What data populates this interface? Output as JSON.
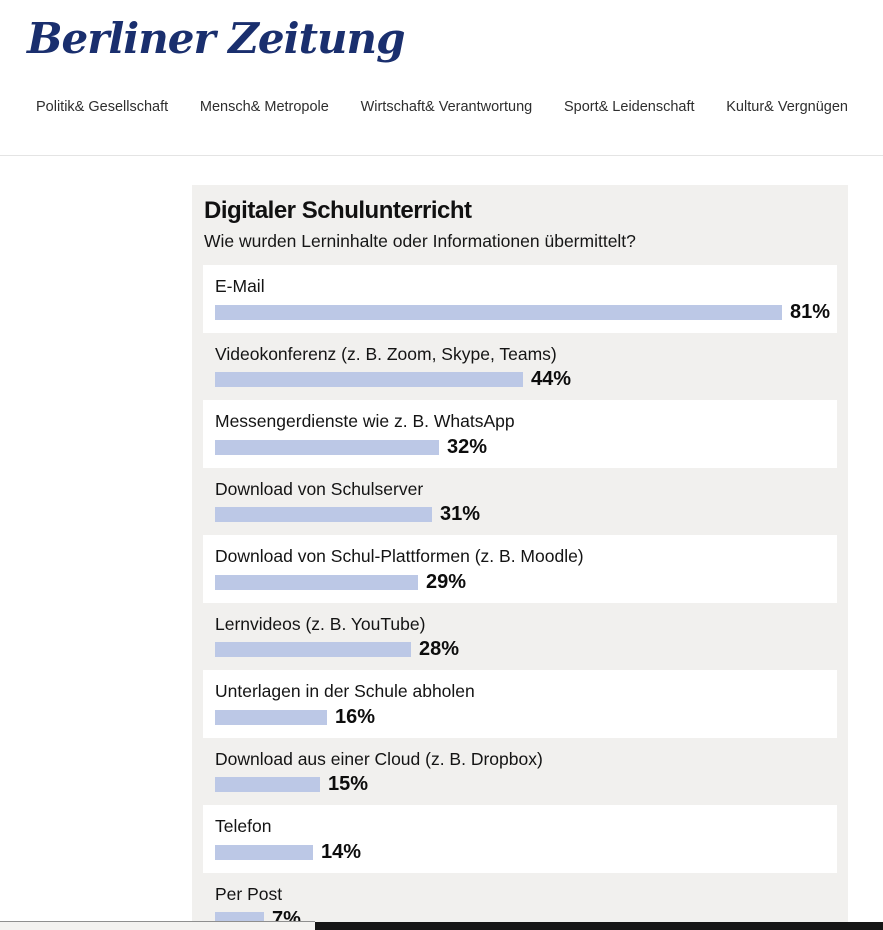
{
  "brand": {
    "logo_text": "Berliner Zeitung"
  },
  "nav": {
    "items": [
      {
        "label": "Politik& Gesellschaft"
      },
      {
        "label": "Mensch& Metropole"
      },
      {
        "label": "Wirtschaft& Verantwortung"
      },
      {
        "label": "Sport& Leidenschaft"
      },
      {
        "label": "Kultur& Vergnügen"
      }
    ]
  },
  "chart_data": {
    "type": "bar",
    "orientation": "horizontal",
    "title": "Digitaler Schulunterricht",
    "subtitle": "Wie wurden Lerninhalte oder Informationen übermittelt?",
    "unit": "%",
    "xlim": [
      0,
      100
    ],
    "categories": [
      "E-Mail",
      "Videokonferenz (z. B. Zoom, Skype, Teams)",
      "Messengerdienste wie z. B. WhatsApp",
      "Download von Schulserver",
      "Download von Schul-Plattformen (z. B. Moodle)",
      "Lernvideos (z. B. YouTube)",
      "Unterlagen in der Schule abholen",
      "Download aus einer Cloud (z. B. Dropbox)",
      "Telefon",
      "Per Post"
    ],
    "values": [
      81,
      44,
      32,
      31,
      29,
      28,
      16,
      15,
      14,
      7
    ],
    "value_labels": [
      "81%",
      "44%",
      "32%",
      "31%",
      "29%",
      "28%",
      "16%",
      "15%",
      "14%",
      "7%"
    ],
    "row_striping": "alternating white / panel gray, first row white",
    "legend": "none",
    "grid": "off"
  },
  "theme": {
    "brand_navy": "#1a2f6e",
    "bar_fill": "#bcc8e6",
    "panel_bg": "#f1f0ee",
    "row_white": "#ffffff",
    "scrollbar_thumb": "#161616"
  }
}
